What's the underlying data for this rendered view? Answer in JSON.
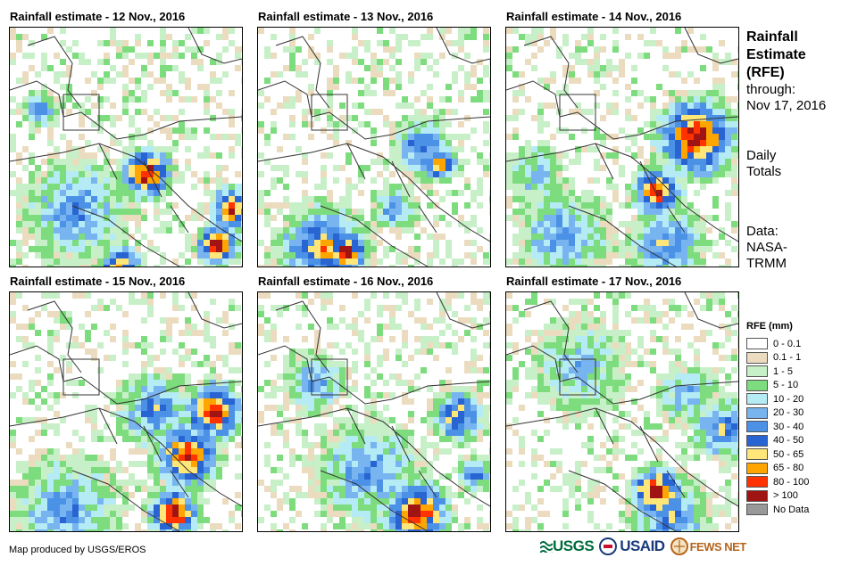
{
  "panels": [
    {
      "title": "Rainfall estimate - 12 Nov., 2016"
    },
    {
      "title": "Rainfall estimate - 13 Nov., 2016"
    },
    {
      "title": "Rainfall estimate - 14 Nov., 2016"
    },
    {
      "title": "Rainfall estimate - 15 Nov., 2016"
    },
    {
      "title": "Rainfall estimate - 16 Nov., 2016"
    },
    {
      "title": "Rainfall estimate - 17 Nov., 2016"
    }
  ],
  "sidebar": {
    "title_line1": "Rainfall",
    "title_line2": "Estimate",
    "title_line3": "(RFE)",
    "through_label": "through:",
    "through_date": "Nov 17, 2016",
    "totals_line1": "Daily",
    "totals_line2": "Totals",
    "data_label": "Data:",
    "data_src1": "NASA-",
    "data_src2": "TRMM"
  },
  "legend": {
    "title": "RFE (mm)",
    "items": [
      {
        "label": "0 - 0.1",
        "color": "#ffffff"
      },
      {
        "label": "0.1 - 1",
        "color": "#ebdcbf"
      },
      {
        "label": "1 - 5",
        "color": "#c8f0c8"
      },
      {
        "label": "5 - 10",
        "color": "#7ddc7d"
      },
      {
        "label": "10 - 20",
        "color": "#b4ebf5"
      },
      {
        "label": "20 - 30",
        "color": "#78b4f0"
      },
      {
        "label": "30 - 40",
        "color": "#4b91e6"
      },
      {
        "label": "40 - 50",
        "color": "#2864d2"
      },
      {
        "label": "50 - 65",
        "color": "#ffe678"
      },
      {
        "label": "65 - 80",
        "color": "#ffa500"
      },
      {
        "label": "80 - 100",
        "color": "#ff3200"
      },
      {
        "label": "> 100",
        "color": "#a01414"
      },
      {
        "label": "No Data",
        "color": "#999999"
      }
    ]
  },
  "footer": {
    "credit": "Map produced by USGS/EROS",
    "logo_usgs": "USGS",
    "logo_usaid": "USAID",
    "logo_fewsnet": "FEWS NET"
  }
}
